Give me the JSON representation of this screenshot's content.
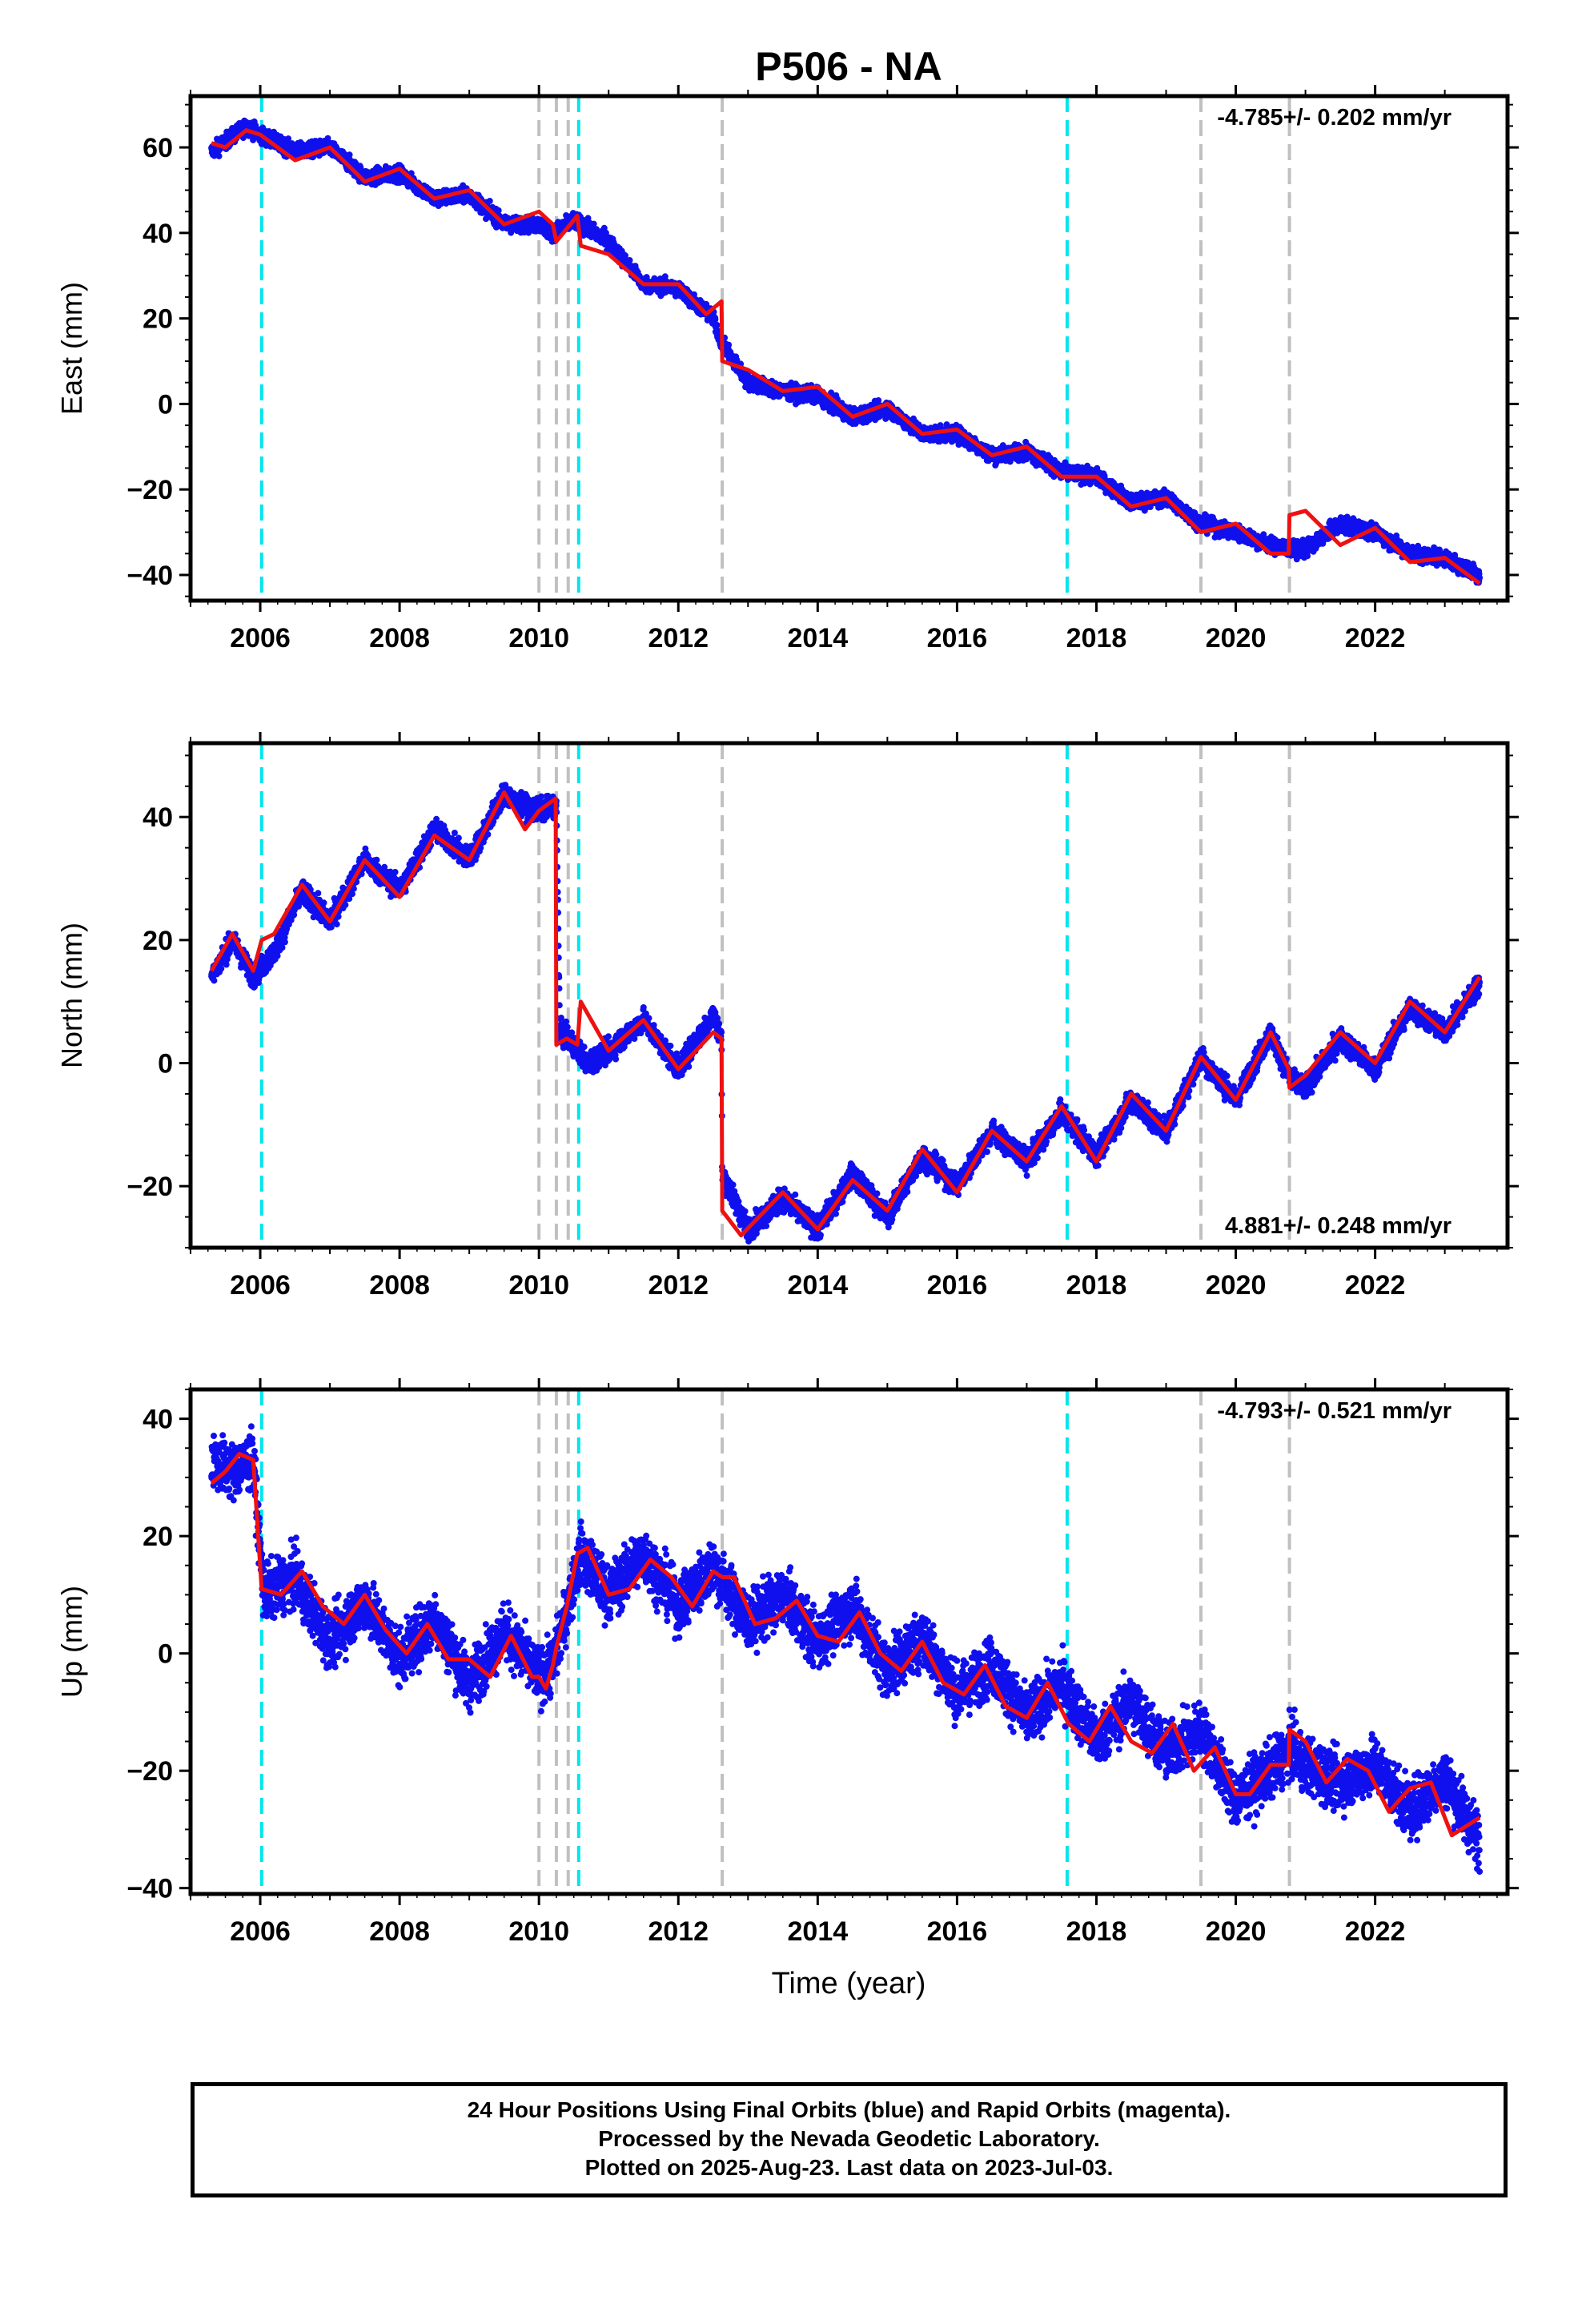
{
  "figure": {
    "title": "P506 - NA",
    "xlabel": "Time (year)",
    "footer": [
      "24 Hour Positions Using Final Orbits (blue) and Rapid Orbits (magenta).",
      "Processed by the Nevada Geodetic Laboratory.",
      "Plotted on 2025-Aug-23. Last data on 2023-Jul-03."
    ]
  },
  "colors": {
    "data": "#1010ee",
    "model": "#ee1111",
    "antenna_change": "#00e5ee",
    "earthquake": "#c0c0c0",
    "frame": "#000000"
  },
  "chart_data": [
    {
      "type": "scatter",
      "name": "east",
      "ylabel": "East (mm)",
      "rate_text": "-4.785+/- 0.202 mm/yr",
      "rate_position": "top-right",
      "xlim": [
        2005.0,
        2023.9
      ],
      "ylim": [
        -46,
        72
      ],
      "yticks": [
        -40,
        -20,
        0,
        20,
        40,
        60
      ],
      "xticks": [
        2006,
        2008,
        2010,
        2012,
        2014,
        2016,
        2018,
        2020,
        2022
      ],
      "grid": false,
      "series": [
        {
          "name": "data_daily",
          "x": [
            2005.3,
            2005.8,
            2006.0,
            2006.5,
            2007.0,
            2007.5,
            2008.0,
            2008.5,
            2009.0,
            2009.5,
            2010.0,
            2010.2,
            2010.5,
            2010.6,
            2011.0,
            2011.5,
            2012.0,
            2012.5,
            2012.63,
            2013.0,
            2013.5,
            2014.0,
            2014.5,
            2015.0,
            2015.5,
            2016.0,
            2016.5,
            2017.0,
            2017.5,
            2018.0,
            2018.5,
            2019.0,
            2019.5,
            2020.0,
            2020.5,
            2020.77,
            2021.0,
            2021.5,
            2022.0,
            2022.5,
            2023.0,
            2023.5
          ],
          "y": [
            59,
            65,
            63,
            59,
            60,
            53,
            54,
            48,
            49,
            42,
            42,
            40,
            43,
            42,
            38,
            28,
            27,
            20,
            14,
            5,
            3,
            2,
            -3,
            -1,
            -7,
            -7,
            -12,
            -11,
            -16,
            -17,
            -23,
            -22,
            -28,
            -30,
            -33,
            -34,
            -34,
            -28,
            -30,
            -35,
            -36,
            -40
          ]
        },
        {
          "name": "model",
          "x": [
            2005.3,
            2005.5,
            2005.8,
            2006.0,
            2006.5,
            2007.0,
            2007.5,
            2008.0,
            2008.5,
            2009.0,
            2009.5,
            2010.0,
            2010.2,
            2010.25,
            2010.4,
            2010.55,
            2010.6,
            2011.0,
            2011.5,
            2012.0,
            2012.4,
            2012.62,
            2012.63,
            2013.0,
            2013.5,
            2014.0,
            2014.5,
            2015.0,
            2015.5,
            2016.0,
            2016.5,
            2017.0,
            2017.5,
            2018.0,
            2018.5,
            2019.0,
            2019.5,
            2020.0,
            2020.5,
            2020.76,
            2020.77,
            2021.0,
            2021.5,
            2022.0,
            2022.5,
            2023.0,
            2023.5
          ],
          "y": [
            61,
            60,
            64,
            63,
            57,
            60,
            52,
            55,
            48,
            50,
            42,
            45,
            42,
            38,
            41,
            44,
            37,
            35,
            28,
            28,
            21,
            24,
            10,
            8,
            3,
            4,
            -3,
            0,
            -7,
            -6,
            -12,
            -10,
            -17,
            -17,
            -24,
            -22,
            -30,
            -28,
            -35,
            -35,
            -26,
            -25,
            -33,
            -29,
            -37,
            -36,
            -42
          ]
        }
      ],
      "vlines": {
        "antenna_change": [
          2006.02,
          2010.57,
          2017.58
        ],
        "earthquake": [
          2010.0,
          2010.25,
          2010.42,
          2012.63,
          2019.5,
          2020.77
        ]
      }
    },
    {
      "type": "scatter",
      "name": "north",
      "ylabel": "North (mm)",
      "rate_text": "4.881+/- 0.248 mm/yr",
      "rate_position": "bottom-right",
      "xlim": [
        2005.0,
        2023.9
      ],
      "ylim": [
        -30,
        52
      ],
      "yticks": [
        -20,
        0,
        20,
        40
      ],
      "xticks": [
        2006,
        2008,
        2010,
        2012,
        2014,
        2016,
        2018,
        2020,
        2022
      ],
      "grid": false,
      "series": [
        {
          "name": "data_daily",
          "x": [
            2005.3,
            2005.6,
            2005.9,
            2006.2,
            2006.6,
            2007.0,
            2007.5,
            2008.0,
            2008.5,
            2009.0,
            2009.5,
            2009.7,
            2010.0,
            2010.25,
            2010.3,
            2010.5,
            2010.7,
            2011.0,
            2011.5,
            2012.0,
            2012.5,
            2012.62,
            2012.63,
            2013.0,
            2013.5,
            2014.0,
            2014.5,
            2015.0,
            2015.5,
            2016.0,
            2016.5,
            2017.0,
            2017.5,
            2018.0,
            2018.5,
            2019.0,
            2019.5,
            2020.0,
            2020.5,
            2020.8,
            2021.0,
            2021.5,
            2022.0,
            2022.5,
            2023.0,
            2023.5
          ],
          "y": [
            14,
            20,
            14,
            18,
            28,
            23,
            33,
            28,
            38,
            33,
            44,
            42,
            41,
            42,
            5,
            3,
            0,
            2,
            7,
            -1,
            8,
            4,
            -18,
            -27,
            -22,
            -27,
            -18,
            -25,
            -15,
            -20,
            -11,
            -16,
            -8,
            -15,
            -6,
            -11,
            1,
            -6,
            5,
            -3,
            -4,
            4,
            -1,
            9,
            5,
            13
          ]
        },
        {
          "name": "model",
          "x": [
            2005.3,
            2005.6,
            2005.9,
            2006.02,
            2006.2,
            2006.6,
            2007.0,
            2007.5,
            2008.0,
            2008.5,
            2009.0,
            2009.5,
            2009.8,
            2010.0,
            2010.24,
            2010.25,
            2010.4,
            2010.55,
            2010.6,
            2011.0,
            2011.5,
            2012.0,
            2012.5,
            2012.62,
            2012.63,
            2012.9,
            2013.5,
            2014.0,
            2014.5,
            2015.0,
            2015.5,
            2016.0,
            2016.5,
            2017.0,
            2017.5,
            2018.0,
            2018.5,
            2019.0,
            2019.5,
            2020.0,
            2020.5,
            2020.76,
            2020.77,
            2021.0,
            2021.5,
            2022.0,
            2022.5,
            2023.0,
            2023.5
          ],
          "y": [
            15,
            21,
            15,
            20,
            21,
            29,
            23,
            33,
            27,
            37,
            33,
            44,
            38,
            41,
            43,
            3,
            4,
            3,
            10,
            2,
            7,
            -1,
            5,
            4,
            -24,
            -28,
            -21,
            -27,
            -19,
            -24,
            -14,
            -21,
            -11,
            -16,
            -7,
            -16,
            -5,
            -11,
            1,
            -6,
            5,
            -1,
            -4,
            -2,
            5,
            0,
            10,
            5,
            14
          ]
        }
      ],
      "vlines": {
        "antenna_change": [
          2006.02,
          2010.57,
          2017.58
        ],
        "earthquake": [
          2010.0,
          2010.25,
          2010.42,
          2012.63,
          2019.5,
          2020.77
        ]
      }
    },
    {
      "type": "scatter",
      "name": "up",
      "ylabel": "Up (mm)",
      "rate_text": "-4.793+/- 0.521 mm/yr",
      "rate_position": "top-right",
      "xlim": [
        2005.0,
        2023.9
      ],
      "ylim": [
        -41,
        45
      ],
      "yticks": [
        -40,
        -20,
        0,
        20,
        40
      ],
      "xticks": [
        2006,
        2008,
        2010,
        2012,
        2014,
        2016,
        2018,
        2020,
        2022
      ],
      "grid": false,
      "series": [
        {
          "name": "data_daily",
          "x": [
            2005.3,
            2005.6,
            2005.9,
            2006.05,
            2006.5,
            2007.0,
            2007.5,
            2008.0,
            2008.5,
            2009.0,
            2009.5,
            2010.0,
            2010.2,
            2010.6,
            2011.0,
            2011.5,
            2012.0,
            2012.5,
            2013.0,
            2013.5,
            2014.0,
            2014.5,
            2015.0,
            2015.5,
            2016.0,
            2016.5,
            2017.0,
            2017.5,
            2018.0,
            2018.5,
            2019.0,
            2019.5,
            2020.0,
            2020.5,
            2020.8,
            2021.0,
            2021.5,
            2022.0,
            2022.5,
            2023.0,
            2023.5
          ],
          "y": [
            33,
            31,
            33,
            10,
            13,
            2,
            9,
            -1,
            6,
            -5,
            4,
            -4,
            -2,
            17,
            10,
            17,
            8,
            15,
            5,
            10,
            2,
            8,
            -3,
            3,
            -7,
            -2,
            -11,
            -5,
            -15,
            -8,
            -17,
            -13,
            -25,
            -20,
            -16,
            -19,
            -22,
            -19,
            -27,
            -21,
            -32
          ]
        },
        {
          "name": "model",
          "x": [
            2005.3,
            2005.5,
            2005.7,
            2005.9,
            2006.02,
            2006.3,
            2006.6,
            2006.9,
            2007.2,
            2007.5,
            2007.8,
            2008.1,
            2008.4,
            2008.7,
            2009.0,
            2009.3,
            2009.6,
            2009.9,
            2010.0,
            2010.1,
            2010.2,
            2010.25,
            2010.4,
            2010.55,
            2010.7,
            2011.0,
            2011.3,
            2011.6,
            2011.9,
            2012.2,
            2012.5,
            2012.63,
            2012.8,
            2013.1,
            2013.4,
            2013.7,
            2014.0,
            2014.3,
            2014.6,
            2014.9,
            2015.2,
            2015.5,
            2015.8,
            2016.1,
            2016.4,
            2016.7,
            2017.0,
            2017.3,
            2017.6,
            2017.9,
            2018.2,
            2018.5,
            2018.8,
            2019.1,
            2019.4,
            2019.7,
            2020.0,
            2020.2,
            2020.5,
            2020.76,
            2020.77,
            2021.0,
            2021.3,
            2021.6,
            2021.9,
            2022.2,
            2022.5,
            2022.8,
            2023.1,
            2023.5
          ],
          "y": [
            29,
            31,
            34,
            33,
            11,
            10,
            14,
            8,
            5,
            10,
            4,
            0,
            5,
            -1,
            -1,
            -4,
            3,
            -4,
            -4,
            -6,
            -2,
            1,
            8,
            17,
            18,
            10,
            11,
            16,
            13,
            8,
            14,
            13,
            13,
            5,
            6,
            9,
            3,
            2,
            7,
            0,
            -3,
            2,
            -5,
            -7,
            -2,
            -9,
            -11,
            -5,
            -12,
            -15,
            -9,
            -15,
            -17,
            -12,
            -20,
            -16,
            -24,
            -24,
            -19,
            -19,
            -13,
            -15,
            -22,
            -18,
            -20,
            -27,
            -23,
            -22,
            -31,
            -28
          ]
        }
      ],
      "vlines": {
        "antenna_change": [
          2006.02,
          2010.57,
          2017.58
        ],
        "earthquake": [
          2010.0,
          2010.25,
          2010.42,
          2012.63,
          2019.5,
          2020.77
        ]
      }
    }
  ]
}
